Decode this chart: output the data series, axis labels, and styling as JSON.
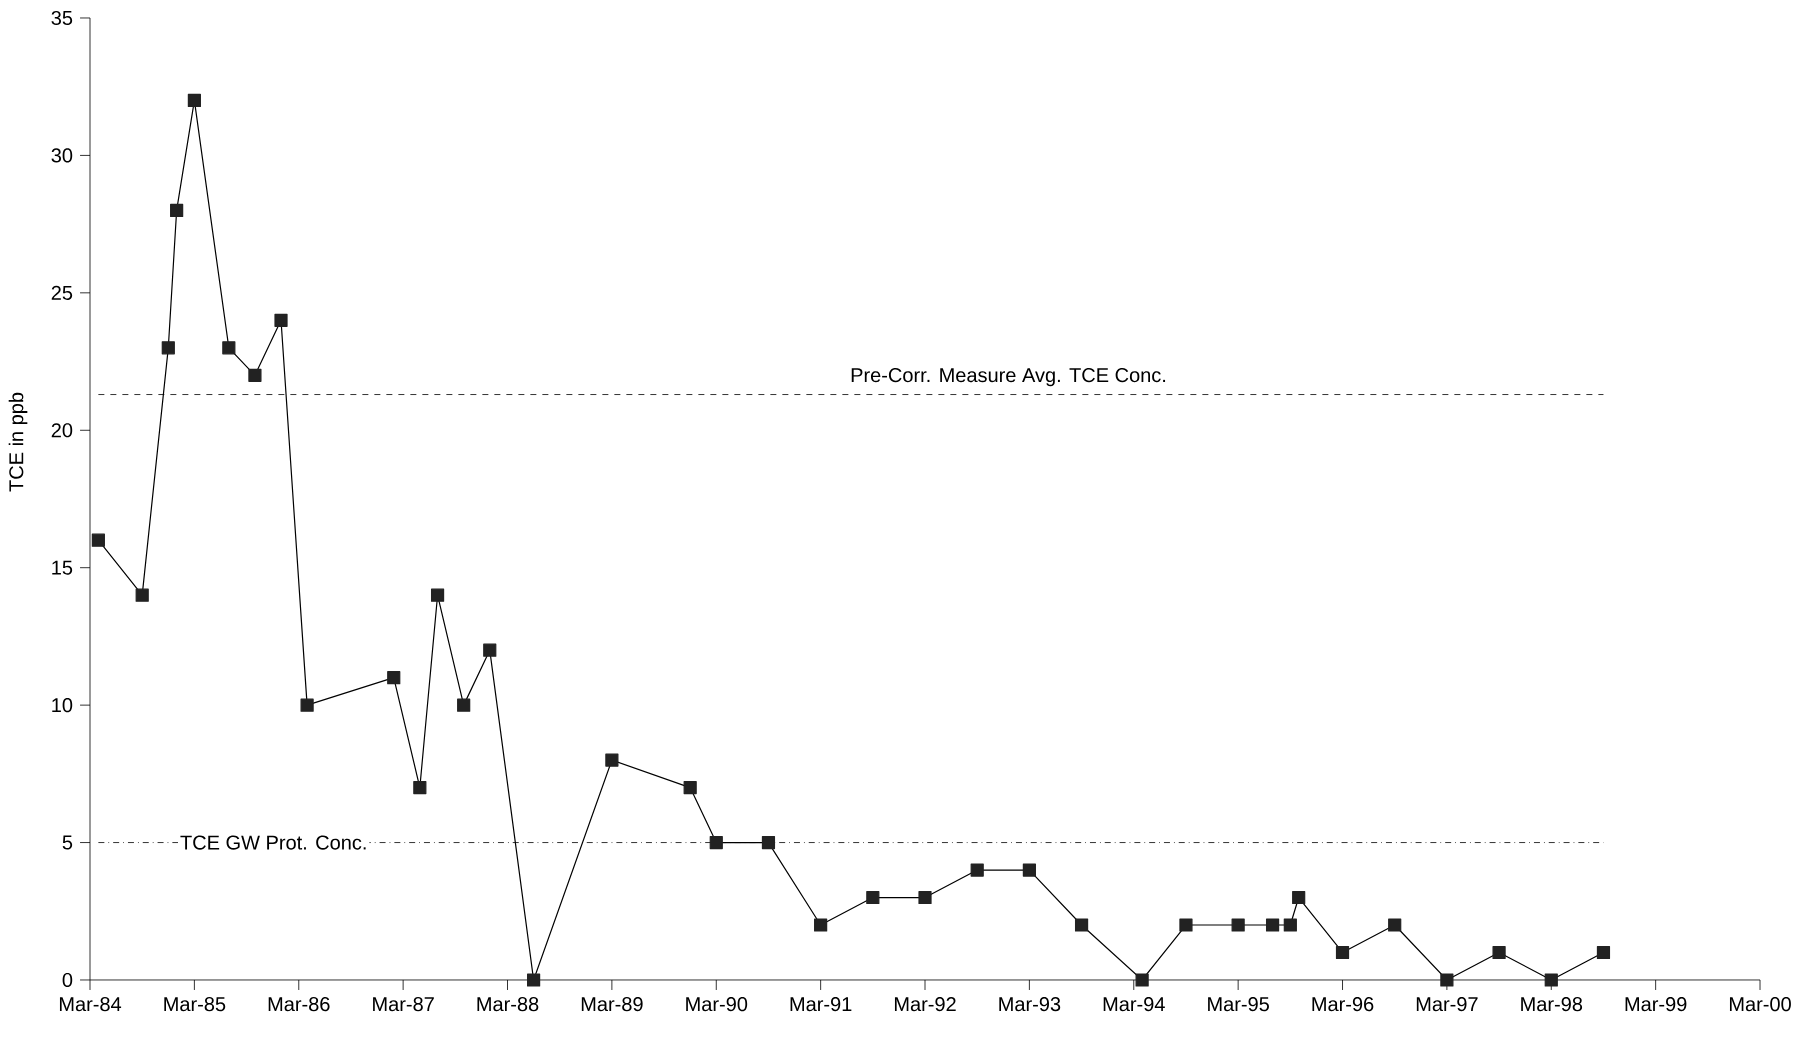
{
  "chart_data": {
    "type": "line",
    "ylabel": "TCE in ppb",
    "x": [
      "1984-04",
      "1984-09",
      "1984-12",
      "1985-01",
      "1985-03",
      "1985-07",
      "1985-10",
      "1986-01",
      "1986-04",
      "1987-02",
      "1987-05",
      "1987-07",
      "1987-10",
      "1988-01",
      "1988-06",
      "1989-03",
      "1989-12",
      "1990-03",
      "1990-09",
      "1991-03",
      "1991-09",
      "1992-03",
      "1992-09",
      "1993-03",
      "1993-09",
      "1994-04",
      "1994-09",
      "1995-03",
      "1995-07",
      "1995-09",
      "1995-10",
      "1996-03",
      "1996-09",
      "1997-03",
      "1997-09",
      "1998-03",
      "1998-09"
    ],
    "series": [
      {
        "color": "#222222",
        "values": [
          16,
          14,
          23,
          28,
          32,
          23,
          22,
          24,
          10,
          11,
          7,
          14,
          10,
          12,
          0,
          8,
          7,
          5,
          5,
          2,
          3,
          3,
          4,
          4,
          2,
          0,
          2,
          2,
          2,
          2,
          3,
          1,
          2,
          0,
          1,
          0,
          1
        ]
      }
    ],
    "marker": "square",
    "line_style": "solid",
    "grid": false,
    "xlim": [
      "1984-03",
      "2000-03"
    ],
    "xticks": [
      {
        "value": "1984-03",
        "label": "Mar-84"
      },
      {
        "value": "1985-03",
        "label": "Mar-85"
      },
      {
        "value": "1986-03",
        "label": "Mar-86"
      },
      {
        "value": "1987-03",
        "label": "Mar-87"
      },
      {
        "value": "1988-03",
        "label": "Mar-88"
      },
      {
        "value": "1989-03",
        "label": "Mar-89"
      },
      {
        "value": "1990-03",
        "label": "Mar-90"
      },
      {
        "value": "1991-03",
        "label": "Mar-91"
      },
      {
        "value": "1992-03",
        "label": "Mar-92"
      },
      {
        "value": "1993-03",
        "label": "Mar-93"
      },
      {
        "value": "1994-03",
        "label": "Mar-94"
      },
      {
        "value": "1995-03",
        "label": "Mar-95"
      },
      {
        "value": "1996-03",
        "label": "Mar-96"
      },
      {
        "value": "1997-03",
        "label": "Mar-97"
      },
      {
        "value": "1998-03",
        "label": "Mar-98"
      },
      {
        "value": "1999-03",
        "label": "Mar-99"
      },
      {
        "value": "2000-03",
        "label": "Mar-00"
      }
    ],
    "ylim": [
      0,
      35
    ],
    "yticks": [
      0,
      5,
      10,
      15,
      20,
      25,
      30,
      35
    ],
    "ref_lines": [
      {
        "axis": "y",
        "value": 21.3,
        "label": "Pre-Corr. Measure Avg. TCE Conc.",
        "line_style": "dashed"
      },
      {
        "axis": "y",
        "value": 5,
        "label": "TCE GW Prot. Conc.",
        "line_style": "dashdot"
      }
    ]
  }
}
